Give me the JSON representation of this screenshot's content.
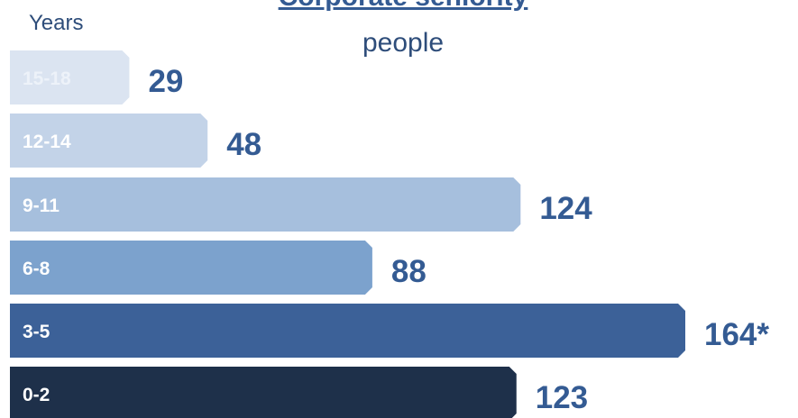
{
  "chart_data": {
    "type": "bar",
    "orientation": "horizontal",
    "title": "Corporate seniority",
    "subtitle": "people",
    "ylabel": "Years",
    "categories": [
      "15-18",
      "12-14",
      "9-11",
      "6-8",
      "3-5",
      "0-2"
    ],
    "values": [
      29,
      48,
      124,
      88,
      164,
      123
    ],
    "value_labels": [
      "29",
      "48",
      "124",
      "88",
      "164*",
      "123"
    ],
    "xlim": [
      0,
      164
    ],
    "grid": false,
    "legend": "none",
    "colors": {
      "bars": [
        "#dbe4f1",
        "#c3d3e8",
        "#a6bfdd",
        "#7ca2cd",
        "#3c6198",
        "#1e304a"
      ],
      "value_label": "#345b93",
      "title": "#345b93",
      "text": "#2e4d7a",
      "category_label_light": "#ffffff",
      "category_label_pale": "#edf2f9"
    }
  }
}
